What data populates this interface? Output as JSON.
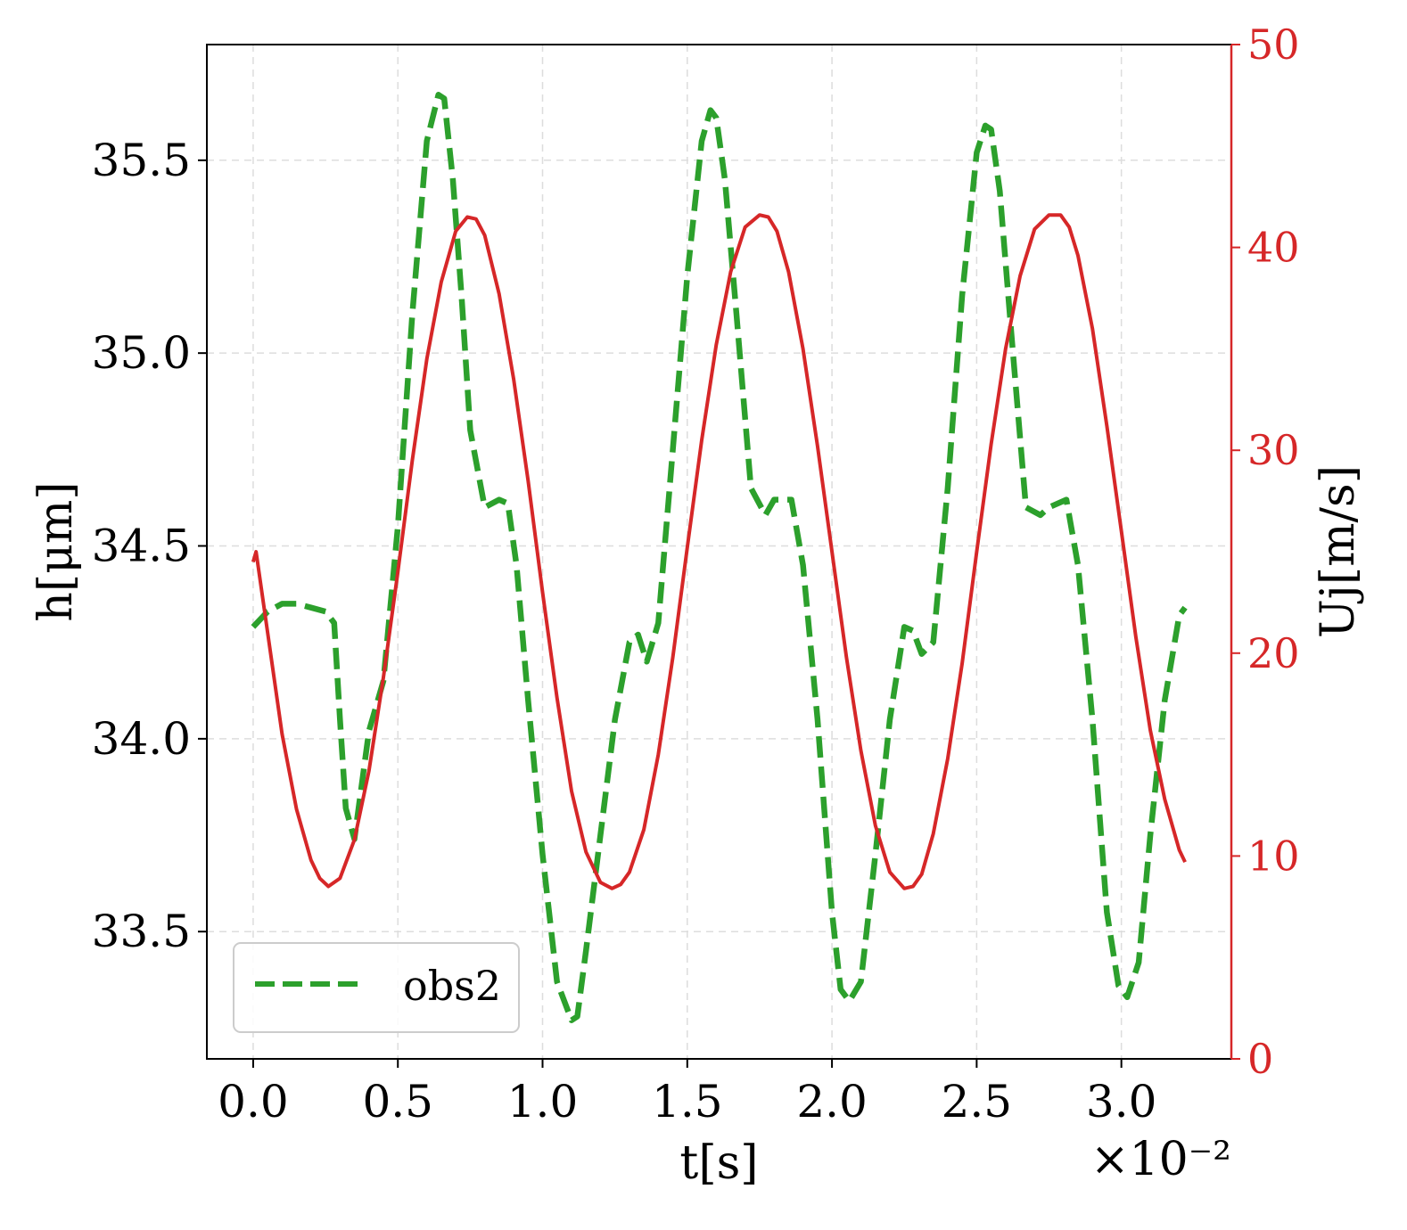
{
  "chart_data": {
    "type": "line",
    "xlabel": "t[s]",
    "x_multiplier": "×10⁻²",
    "ylabel_left": "h[μm]",
    "ylabel_right": "Uj[m/s]",
    "xlim": [
      -0.16,
      3.38
    ],
    "ylim_left": [
      33.17,
      35.8
    ],
    "ylim_right": [
      0,
      50
    ],
    "x_ticks": [
      "0.0",
      "0.5",
      "1.0",
      "1.5",
      "2.0",
      "2.5",
      "3.0"
    ],
    "x_tick_values": [
      0.0,
      0.5,
      1.0,
      1.5,
      2.0,
      2.5,
      3.0
    ],
    "y_left_ticks": [
      "33.5",
      "34.0",
      "34.5",
      "35.0",
      "35.5"
    ],
    "y_left_tick_values": [
      33.5,
      34.0,
      34.5,
      35.0,
      35.5
    ],
    "y_right_ticks": [
      "0",
      "10",
      "20",
      "30",
      "40",
      "50"
    ],
    "y_right_tick_values": [
      0,
      10,
      20,
      30,
      40,
      50
    ],
    "grid": true,
    "legend_position": "lower-left",
    "legend": [
      "obs2"
    ],
    "series": [
      {
        "name": "obs2",
        "axis": "left",
        "style": "dashed",
        "color": "#2ca02c",
        "x": [
          0.0,
          0.05,
          0.1,
          0.15,
          0.2,
          0.25,
          0.28,
          0.3,
          0.32,
          0.35,
          0.4,
          0.45,
          0.5,
          0.55,
          0.6,
          0.64,
          0.66,
          0.69,
          0.72,
          0.75,
          0.8,
          0.85,
          0.88,
          0.91,
          0.95,
          1.0,
          1.05,
          1.1,
          1.12,
          1.15,
          1.2,
          1.25,
          1.3,
          1.33,
          1.36,
          1.4,
          1.45,
          1.5,
          1.55,
          1.58,
          1.6,
          1.63,
          1.67,
          1.72,
          1.77,
          1.8,
          1.86,
          1.9,
          1.95,
          2.0,
          2.03,
          2.06,
          2.1,
          2.15,
          2.2,
          2.25,
          2.28,
          2.31,
          2.35,
          2.4,
          2.45,
          2.5,
          2.53,
          2.55,
          2.58,
          2.62,
          2.67,
          2.72,
          2.75,
          2.81,
          2.85,
          2.9,
          2.95,
          2.99,
          3.02,
          3.06,
          3.1,
          3.15,
          3.2,
          3.22
        ],
        "values": [
          34.29,
          34.33,
          34.35,
          34.35,
          34.34,
          34.33,
          34.3,
          34.05,
          33.82,
          33.74,
          34.02,
          34.15,
          34.55,
          35.1,
          35.55,
          35.67,
          35.66,
          35.45,
          35.15,
          34.8,
          34.6,
          34.62,
          34.61,
          34.45,
          34.1,
          33.7,
          33.37,
          33.27,
          33.28,
          33.45,
          33.75,
          34.05,
          34.25,
          34.27,
          34.2,
          34.3,
          34.75,
          35.2,
          35.55,
          35.63,
          35.61,
          35.45,
          35.1,
          34.65,
          34.58,
          34.62,
          34.62,
          34.45,
          34.05,
          33.55,
          33.35,
          33.32,
          33.37,
          33.7,
          34.05,
          34.29,
          34.28,
          34.22,
          34.25,
          34.65,
          35.15,
          35.52,
          35.59,
          35.58,
          35.42,
          35.05,
          34.6,
          34.58,
          34.6,
          34.62,
          34.45,
          34.05,
          33.55,
          33.36,
          33.33,
          33.42,
          33.75,
          34.1,
          34.32,
          34.34
        ]
      },
      {
        "name": "",
        "axis": "right",
        "style": "solid",
        "color": "#d62728",
        "x": [
          0.0,
          0.01,
          0.05,
          0.1,
          0.15,
          0.2,
          0.23,
          0.26,
          0.3,
          0.35,
          0.4,
          0.45,
          0.5,
          0.55,
          0.6,
          0.65,
          0.7,
          0.74,
          0.77,
          0.8,
          0.85,
          0.9,
          0.95,
          1.0,
          1.05,
          1.1,
          1.15,
          1.2,
          1.24,
          1.27,
          1.3,
          1.35,
          1.4,
          1.45,
          1.5,
          1.55,
          1.6,
          1.65,
          1.7,
          1.75,
          1.78,
          1.81,
          1.85,
          1.9,
          1.95,
          2.0,
          2.05,
          2.1,
          2.15,
          2.2,
          2.25,
          2.28,
          2.31,
          2.35,
          2.4,
          2.45,
          2.5,
          2.55,
          2.6,
          2.65,
          2.7,
          2.75,
          2.79,
          2.82,
          2.85,
          2.9,
          2.95,
          3.0,
          3.05,
          3.1,
          3.15,
          3.2,
          3.22
        ],
        "values": [
          24.5,
          25.0,
          21.0,
          16.0,
          12.3,
          9.8,
          8.9,
          8.5,
          8.9,
          10.8,
          14.2,
          18.8,
          24.0,
          29.5,
          34.5,
          38.3,
          40.8,
          41.5,
          41.4,
          40.6,
          37.7,
          33.5,
          28.5,
          23.0,
          17.8,
          13.2,
          10.2,
          8.7,
          8.4,
          8.6,
          9.2,
          11.3,
          15.0,
          19.8,
          25.2,
          30.5,
          35.2,
          38.8,
          41.0,
          41.6,
          41.5,
          40.8,
          38.8,
          35.0,
          30.2,
          25.0,
          19.8,
          15.2,
          11.5,
          9.2,
          8.4,
          8.5,
          9.1,
          11.1,
          14.8,
          19.5,
          25.0,
          30.3,
          35.0,
          38.6,
          40.9,
          41.6,
          41.6,
          41.0,
          39.6,
          36.0,
          31.2,
          26.0,
          20.8,
          16.2,
          12.8,
          10.3,
          9.7
        ]
      }
    ]
  }
}
